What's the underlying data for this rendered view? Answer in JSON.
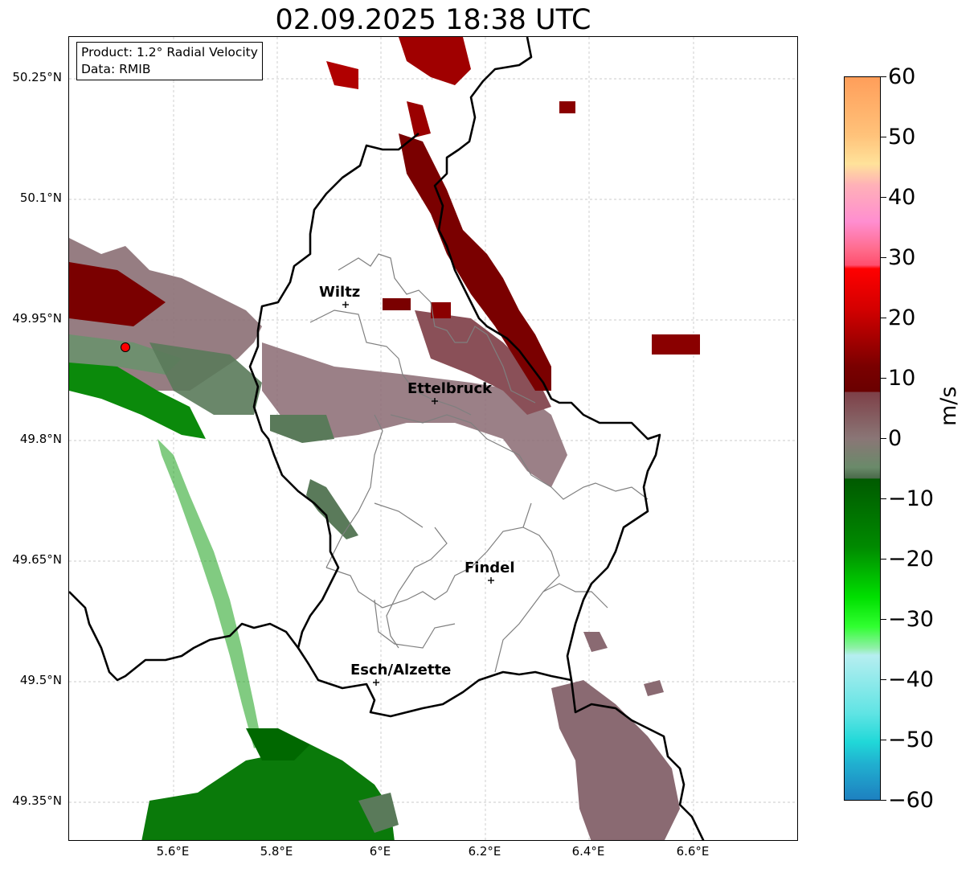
{
  "title": "02.09.2025 18:38 UTC",
  "info_box": {
    "product_line": "Product: 1.2° Radial Velocity",
    "data_line": "Data: RMIB"
  },
  "axes": {
    "lat_ticks": [
      "50.25°N",
      "50.1°N",
      "49.95°N",
      "49.8°N",
      "49.65°N",
      "49.5°N",
      "49.35°N"
    ],
    "lon_ticks": [
      "5.6°E",
      "5.8°E",
      "6°E",
      "6.2°E",
      "6.4°E",
      "6.6°E"
    ]
  },
  "cities": [
    {
      "name": "Wiltz",
      "lon": 5.93,
      "lat": 49.97
    },
    {
      "name": "Ettelbruck",
      "lon": 6.1,
      "lat": 49.85
    },
    {
      "name": "Findel",
      "lon": 6.21,
      "lat": 49.63
    },
    {
      "name": "Esch/Alzette",
      "lon": 5.99,
      "lat": 49.5
    }
  ],
  "colorbar": {
    "ticks": [
      "60",
      "50",
      "40",
      "30",
      "20",
      "10",
      "0",
      "−10",
      "−20",
      "−30",
      "−40",
      "−50",
      "−60"
    ],
    "unit": "m/s",
    "range": [
      -60,
      60
    ]
  },
  "colors": {
    "inbound_strong": "#007000",
    "inbound": "#0aa00a",
    "near_zero": "#8a6a72",
    "near_zero_green": "#5a7a5a",
    "outbound": "#7a0000",
    "outbound_bright": "#b00000",
    "radar_site": "#ff0000"
  }
}
